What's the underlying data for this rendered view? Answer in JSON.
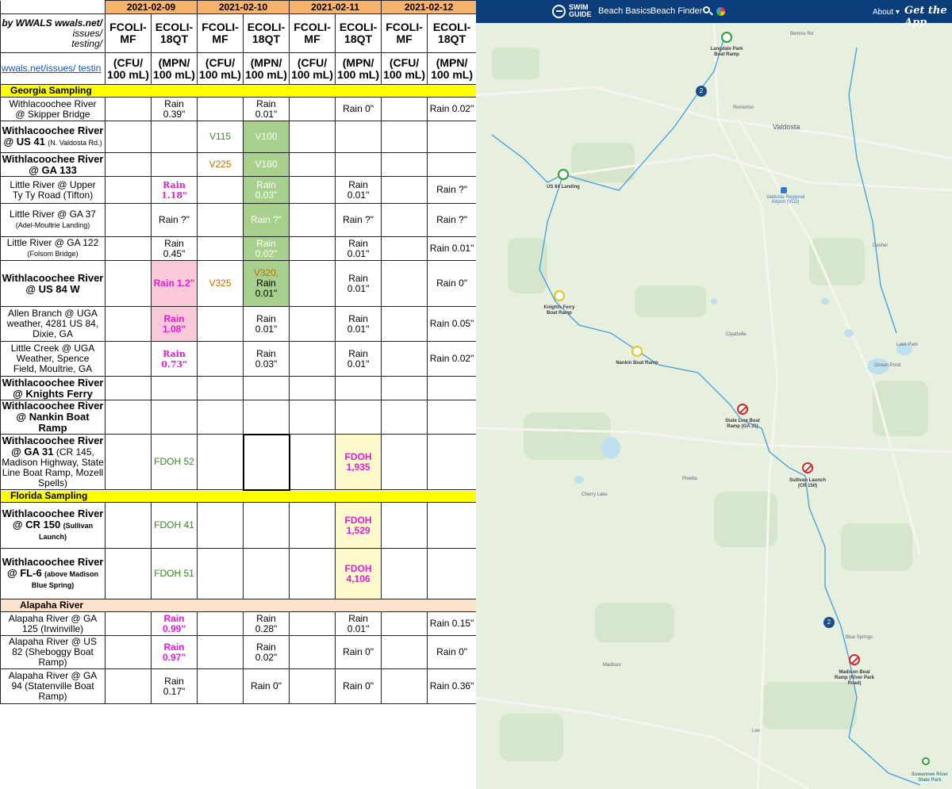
{
  "sheet": {
    "dates": [
      "2021-02-09",
      "2021-02-10",
      "2021-02-11",
      "2021-02-12"
    ],
    "by_line1": "by WWALS wwals.net/",
    "by_line2": "issues/",
    "by_line3": "testing/",
    "link_text": "wwals.net/issues/ testin",
    "col_headers": [
      {
        "l1": "FCOLI-",
        "l2": "MF"
      },
      {
        "l1": "ECOLI-",
        "l2": "18QT"
      },
      {
        "l1": "FCOLI-",
        "l2": "MF"
      },
      {
        "l1": "ECOLI-",
        "l2": "18QT"
      },
      {
        "l1": "FCOLI-",
        "l2": "MF"
      },
      {
        "l1": "ECOLI-",
        "l2": "18QT"
      },
      {
        "l1": "FCOLI-",
        "l2": "MF"
      },
      {
        "l1": "ECOLI-",
        "l2": "18QT"
      }
    ],
    "units": [
      {
        "l1": "(CFU/",
        "l2": "100 mL)"
      },
      {
        "l1": "(MPN/",
        "l2": "100 mL)"
      },
      {
        "l1": "(CFU/",
        "l2": "100 mL)"
      },
      {
        "l1": "(MPN/",
        "l2": "100 mL)"
      },
      {
        "l1": "(CFU/",
        "l2": "100 mL)"
      },
      {
        "l1": "(MPN/",
        "l2": "100 mL)"
      },
      {
        "l1": "(CFU/",
        "l2": "100 mL)"
      },
      {
        "l1": "(MPN/",
        "l2": "100 mL)"
      }
    ],
    "sections": {
      "georgia": "Georgia Sampling",
      "florida": "Florida Sampling",
      "alapaha": "Alapaha River"
    },
    "rows": [
      {
        "a": "Withlacoochee River",
        "b": "@ Skipper Bridge",
        "c": "",
        "cells": [
          "",
          "Rain 0.39\"",
          "",
          "Rain 0.01\"",
          "",
          "Rain 0\"",
          "",
          "Rain 0.02\""
        ]
      },
      {
        "a": "Withlacoochee River",
        "b": "@ US 41",
        "c": "(N. Valdosta Rd.)",
        "cells": [
          "",
          "",
          "V115",
          "V100",
          "",
          "",
          "",
          ""
        ]
      },
      {
        "a": "Withlacoochee River",
        "b": "@ GA 133",
        "c": "",
        "cells": [
          "",
          "",
          "V225",
          "V180",
          "",
          "",
          "",
          ""
        ]
      },
      {
        "a": "Little River @ Upper",
        "b": "Ty Ty Road (Tifton)",
        "c": "",
        "cells": [
          "",
          "Rain 1.18\"",
          "",
          "Rain 0.03\"",
          "",
          "Rain 0.01\"",
          "",
          "Rain ?\""
        ]
      },
      {
        "a": "Little River @ GA 37",
        "b": "",
        "c": "(Adel-Moultrie Landing)",
        "cells": [
          "",
          "Rain ?\"",
          "",
          "Rain ?\"",
          "",
          "Rain ?\"",
          "",
          "Rain ?\""
        ]
      },
      {
        "a": "Little River @ GA 122",
        "b": "",
        "c": "(Folsom Bridge)",
        "cells": [
          "",
          "Rain 0.45\"",
          "",
          "Rain 0.02\"",
          "",
          "Rain 0.01\"",
          "",
          "Rain 0.01\""
        ]
      },
      {
        "a": "Withlacoochee River",
        "b": "@ US 84 W",
        "c": "",
        "cells": [
          "",
          "Rain 1.2\"",
          "V325",
          "V320,",
          "",
          "Rain 0.01\"",
          "",
          "Rain 0\""
        ],
        "extra": "Rain 0.01\""
      },
      {
        "a": "Allen Branch @ UGA",
        "b": "weather, 4281 US 84,",
        "c": "Dixie, GA",
        "cells": [
          "",
          "Rain 1.08\"",
          "",
          "Rain 0.01\"",
          "",
          "Rain 0.01\"",
          "",
          "Rain 0.05\""
        ]
      },
      {
        "a": "Little Creek @ UGA",
        "b": "Weather, Spence",
        "c": "Field, Moultrie, GA",
        "cells": [
          "",
          "Rain 0.73\"",
          "",
          "Rain 0.03\"",
          "",
          "Rain 0.01\"",
          "",
          "Rain 0.02\""
        ]
      },
      {
        "a": "Withlacoochee River",
        "b": "@ Knights Ferry",
        "c": "",
        "cells": [
          "",
          "",
          "",
          "",
          "",
          "",
          "",
          ""
        ]
      },
      {
        "a": "Withlacoochee River",
        "b": "@ Nankin Boat Ramp",
        "c": "",
        "cells": [
          "",
          "",
          "",
          "",
          "",
          "",
          "",
          ""
        ]
      },
      {
        "a": "Withlacoochee River",
        "b": "@ GA 31",
        "c": "(CR 145, Madison Highway, State Line Boat Ramp, Mozell Spells)",
        "cells": [
          "",
          "FDOH 52",
          "",
          "",
          "",
          "FDOH",
          "",
          ""
        ],
        "extra": "1,935"
      }
    ],
    "florida_rows": [
      {
        "a": "Withlacoochee River",
        "b": "@ CR 150",
        "c": "(Sullivan Launch)",
        "cells": [
          "",
          "FDOH 41",
          "",
          "",
          "",
          "FDOH",
          "",
          ""
        ],
        "extra": "1,529"
      },
      {
        "a": "Withlacoochee River",
        "b": "@ FL-6",
        "c": "(above Madison Blue Spring)",
        "cells": [
          "",
          "FDOH 51",
          "",
          "",
          "",
          "FDOH",
          "",
          ""
        ],
        "extra": "4,106"
      }
    ],
    "alapaha_rows": [
      {
        "a": "Alapaha River @ GA",
        "b": "125 (Irwinville)",
        "cells": [
          "",
          "Rain 0.99\"",
          "",
          "Rain 0.28\"",
          "",
          "Rain 0.01\"",
          "",
          "Rain 0.15\""
        ]
      },
      {
        "a": "Alapaha River @ US",
        "b": "82 (Sheboggy Boat",
        "c": "Ramp)",
        "cells": [
          "",
          "Rain 0.97\"",
          "",
          "Rain 0.02\"",
          "",
          "Rain 0\"",
          "",
          "Rain 0\""
        ]
      },
      {
        "a": "Alapaha River @ GA",
        "b": "94 (Statenville Boat",
        "c": "Ramp)",
        "cells": [
          "",
          "Rain 0.17\"",
          "",
          "Rain 0\"",
          "",
          "Rain 0\"",
          "",
          "Rain 0.36\""
        ]
      }
    ]
  },
  "map": {
    "brand_top": "SWIM",
    "brand_bottom": "GUIDE",
    "nav": [
      "Beach Basics",
      "Beach Finder"
    ],
    "about": "About",
    "get_app": "Get the App",
    "markers": [
      {
        "label": "Langdale Park Boat Ramp",
        "status": "green"
      },
      {
        "label": "US 84 Landing",
        "status": "green"
      },
      {
        "label": "Knights Ferry Boat Ramp",
        "status": "yellow"
      },
      {
        "label": "Nankin Boat Ramp",
        "status": "yellow"
      },
      {
        "label": "State Line Boat Ramp (GA 31)",
        "status": "red"
      },
      {
        "label": "Sullivan Launch (CR 150)",
        "status": "red"
      },
      {
        "label": "Madison Boat Ramp (River Park Road)",
        "status": "red"
      },
      {
        "label": "Suwannee River State Park",
        "status": "green"
      }
    ],
    "clusters": [
      "2",
      "2"
    ],
    "towns": [
      "Valdosta",
      "Remerton",
      "Clyattville",
      "Pinetta",
      "Madison",
      "Blue Springs",
      "Dasher",
      "Lake Park",
      "Ocean Pond",
      "Cherry Lake",
      "Lee",
      "Bemiss Rd"
    ],
    "airport": "Valdosta Regional Airport (VLD)"
  }
}
